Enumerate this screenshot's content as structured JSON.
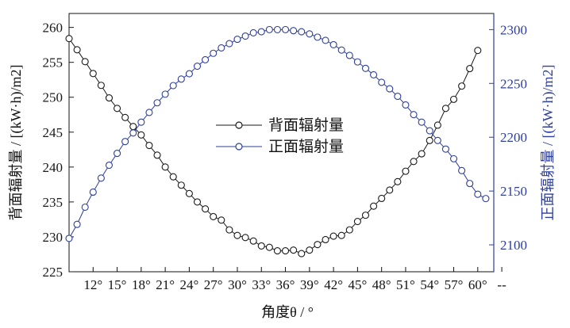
{
  "chart_data": {
    "type": "line",
    "x_tick_labels": [
      "12°",
      "15°",
      "18°",
      "21°",
      "24°",
      "27°",
      "30°",
      "33°",
      "36°",
      "39°",
      "42°",
      "45°",
      "48°",
      "51°",
      "54°",
      "57°",
      "60°",
      "--"
    ],
    "xlabel": "角度θ / °",
    "ylabel_left": "背面辐射量 / [(kW·h)/m2]",
    "ylabel_right": "正面辐射量 / [(kW·h)/m2]",
    "ylim_left": [
      225,
      262
    ],
    "yticks_left": [
      225,
      230,
      235,
      240,
      245,
      250,
      255,
      260
    ],
    "ylim_right": [
      2075,
      2315
    ],
    "yticks_right": [
      2100,
      2150,
      2200,
      2250,
      2300
    ],
    "legend_position": "center",
    "axis_colors": {
      "left": "#1a1a1a",
      "right": "#2e3e9c"
    },
    "series": [
      {
        "name": "背面辐射量",
        "axis": "left",
        "color": "#1a1a1a",
        "x": [
          9,
          10,
          11,
          12,
          13,
          14,
          15,
          16,
          17,
          18,
          19,
          20,
          21,
          22,
          23,
          24,
          25,
          26,
          27,
          28,
          29,
          30,
          31,
          32,
          33,
          34,
          35,
          36,
          37,
          38,
          39,
          40,
          41,
          42,
          43,
          44,
          45,
          46,
          47,
          48,
          49,
          50,
          51,
          52,
          53,
          54,
          55,
          56,
          57,
          58,
          59,
          60
        ],
        "values": [
          258.4,
          256.8,
          255.1,
          253.4,
          251.7,
          249.9,
          248.4,
          247.1,
          245.8,
          244.6,
          243.1,
          241.7,
          240.0,
          238.6,
          237.4,
          236.2,
          235.0,
          234.0,
          232.9,
          232.4,
          231.0,
          230.2,
          229.9,
          229.4,
          228.7,
          228.5,
          228.0,
          228.0,
          228.1,
          227.6,
          228.1,
          228.9,
          229.6,
          230.1,
          230.2,
          231.0,
          232.2,
          233.1,
          234.4,
          235.5,
          236.7,
          237.9,
          239.4,
          240.8,
          241.9,
          243.8,
          246.0,
          248.4,
          249.7,
          251.6,
          254.1,
          256.7
        ]
      },
      {
        "name": "正面辐射量",
        "axis": "right",
        "color": "#2e3e9c",
        "x": [
          9,
          10,
          11,
          12,
          13,
          14,
          15,
          16,
          17,
          18,
          19,
          20,
          21,
          22,
          23,
          24,
          25,
          26,
          27,
          28,
          29,
          30,
          31,
          32,
          33,
          34,
          35,
          36,
          37,
          38,
          39,
          40,
          41,
          42,
          43,
          44,
          45,
          46,
          47,
          48,
          49,
          50,
          51,
          52,
          53,
          54,
          55,
          56,
          57,
          58,
          59,
          60,
          61
        ],
        "values": [
          2106,
          2119,
          2135,
          2149,
          2162,
          2174,
          2185,
          2196,
          2204,
          2214,
          2223,
          2232,
          2240,
          2248,
          2254,
          2259,
          2266,
          2272,
          2278,
          2283,
          2287,
          2291,
          2294,
          2297,
          2298,
          2300,
          2300,
          2300,
          2299,
          2298,
          2296,
          2293,
          2290,
          2286,
          2281,
          2276,
          2270,
          2264,
          2258,
          2251,
          2245,
          2238,
          2230,
          2221,
          2214,
          2206,
          2197,
          2189,
          2180,
          2169,
          2157,
          2147,
          2143
        ]
      }
    ]
  }
}
